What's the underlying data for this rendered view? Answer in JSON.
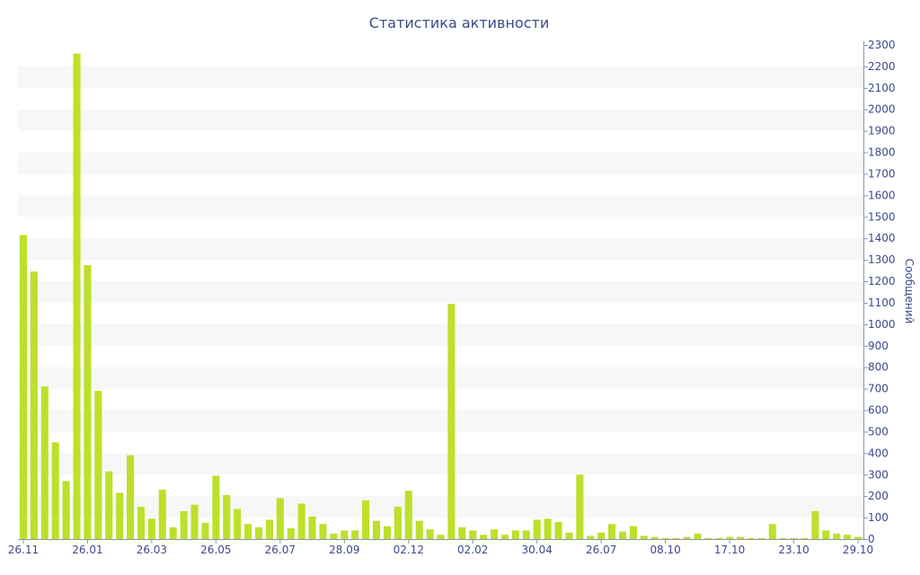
{
  "chart_data": {
    "type": "bar",
    "title": "Статистика активности",
    "ylabel": "Сообщений",
    "xlabel": "",
    "ylim": [
      0,
      2300
    ],
    "y_ticks": [
      0,
      100,
      200,
      300,
      400,
      500,
      600,
      700,
      800,
      900,
      1000,
      1100,
      1200,
      1300,
      1400,
      1500,
      1600,
      1700,
      1800,
      1900,
      2000,
      2100,
      2200,
      2300
    ],
    "y_axis_position": "right",
    "grid": "alternating horizontal bands",
    "bar_color": "#bde02a",
    "text_color": "#3c4a8a",
    "x_tick_labels": [
      {
        "label": "26.11",
        "index": 0
      },
      {
        "label": "26.01",
        "index": 6
      },
      {
        "label": "26.03",
        "index": 12
      },
      {
        "label": "26.05",
        "index": 18
      },
      {
        "label": "26.07",
        "index": 24
      },
      {
        "label": "28.09",
        "index": 30
      },
      {
        "label": "02.12",
        "index": 36
      },
      {
        "label": "02.02",
        "index": 42
      },
      {
        "label": "30.04",
        "index": 48
      },
      {
        "label": "26.07",
        "index": 54
      },
      {
        "label": "08.10",
        "index": 60
      },
      {
        "label": "17.10",
        "index": 66
      },
      {
        "label": "23.10",
        "index": 72
      },
      {
        "label": "29.10",
        "index": 78
      }
    ],
    "values": [
      1415,
      1245,
      710,
      450,
      270,
      2260,
      1275,
      690,
      315,
      215,
      390,
      150,
      95,
      230,
      55,
      130,
      160,
      75,
      295,
      205,
      140,
      70,
      55,
      90,
      190,
      50,
      165,
      105,
      70,
      25,
      40,
      40,
      180,
      85,
      60,
      150,
      225,
      85,
      45,
      20,
      1095,
      55,
      40,
      20,
      45,
      20,
      40,
      40,
      90,
      95,
      80,
      30,
      300,
      15,
      30,
      70,
      35,
      60,
      15,
      10,
      5,
      5,
      10,
      25,
      5,
      5,
      10,
      10,
      5,
      5,
      70,
      5,
      5,
      5,
      130,
      40,
      25,
      20,
      10
    ]
  }
}
